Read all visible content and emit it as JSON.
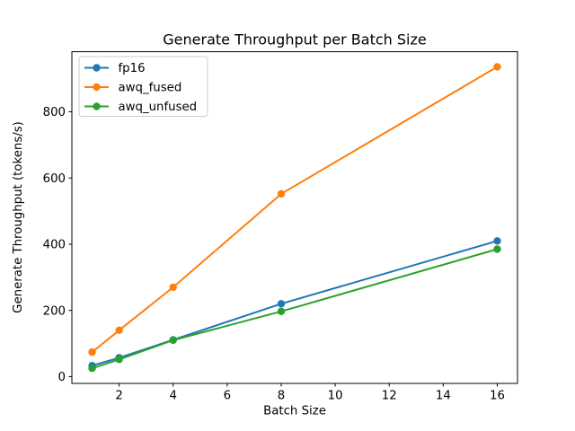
{
  "figure": {
    "title": "Generate Throughput per Batch Size",
    "xlabel": "Batch Size",
    "ylabel": "Generate Throughput (tokens/s)"
  },
  "chart_data": {
    "type": "line",
    "title": "Generate Throughput per Batch Size",
    "xlabel": "Batch Size",
    "ylabel": "Generate Throughput (tokens/s)",
    "x": [
      1,
      2,
      4,
      8,
      16
    ],
    "series": [
      {
        "name": "fp16",
        "color": "#1f77b4",
        "values": [
          33,
          57,
          111,
          220,
          410
        ]
      },
      {
        "name": "awq_fused",
        "color": "#ff7f0e",
        "values": [
          74,
          140,
          270,
          552,
          936
        ]
      },
      {
        "name": "awq_unfused",
        "color": "#2ca02c",
        "values": [
          25,
          52,
          110,
          197,
          385
        ]
      }
    ],
    "xticks": [
      2,
      4,
      6,
      8,
      10,
      12,
      14,
      16
    ],
    "yticks": [
      0,
      200,
      400,
      600,
      800
    ],
    "xlim": [
      0.25,
      16.75
    ],
    "ylim": [
      -20.6,
      981.6
    ],
    "grid": false,
    "marker": "o",
    "legend_position": "upper left",
    "background_color": "#ffffff",
    "spine_color": "#000000",
    "legend_border_color": "#cccccc"
  }
}
